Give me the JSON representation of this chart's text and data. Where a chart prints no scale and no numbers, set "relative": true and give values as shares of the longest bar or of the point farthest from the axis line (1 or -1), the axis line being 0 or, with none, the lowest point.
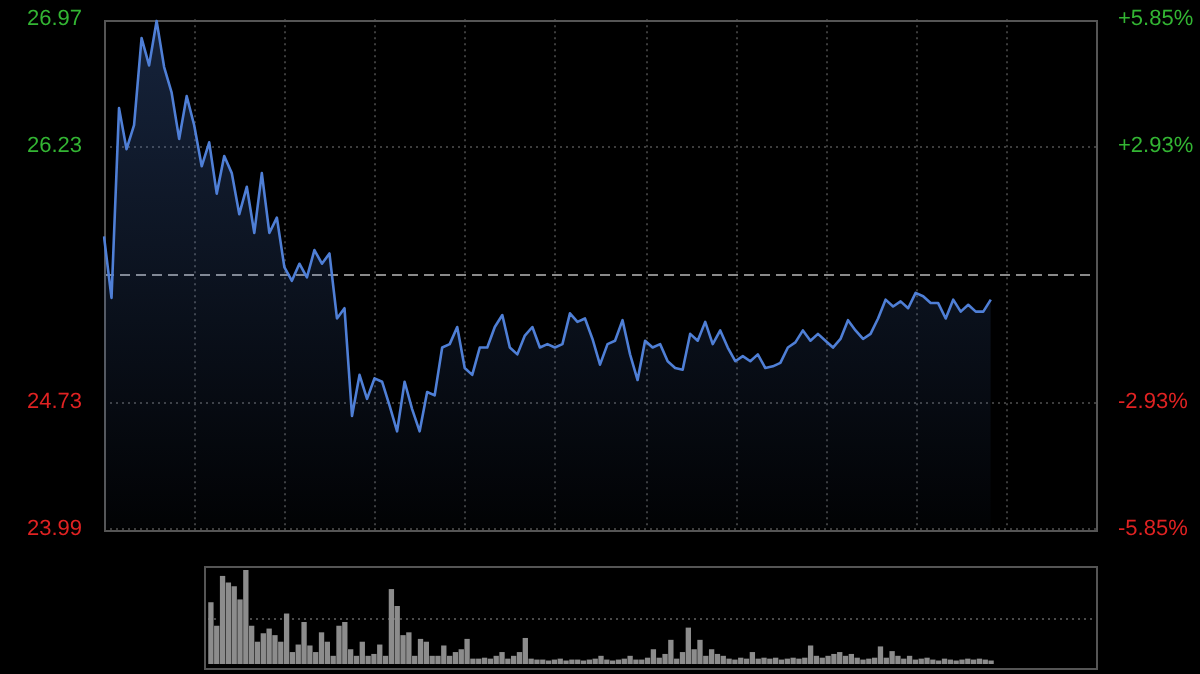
{
  "chart_data": [
    {
      "type": "area",
      "categories": [
        null,
        null,
        null,
        null,
        null,
        null,
        null,
        null,
        null,
        null,
        null,
        null,
        null,
        null,
        null,
        null,
        null,
        null,
        null,
        null,
        null,
        null,
        null,
        null,
        null,
        null,
        null,
        null,
        null,
        null,
        null,
        null,
        null,
        null,
        null,
        null,
        null,
        null,
        null,
        null,
        null,
        null,
        null,
        null,
        null,
        null,
        null,
        null,
        null,
        null,
        null,
        null,
        null,
        null,
        null,
        null,
        null,
        null,
        null,
        null,
        null,
        null,
        null,
        null,
        null,
        null,
        null,
        null,
        null,
        null,
        null,
        null,
        null,
        null,
        null,
        null,
        null,
        null,
        null,
        null,
        null,
        null,
        null,
        null,
        null,
        null,
        null,
        null,
        null,
        null,
        null,
        null,
        null,
        null,
        null,
        null,
        null,
        null,
        null,
        null,
        null,
        null,
        null,
        null,
        null,
        null,
        null,
        null,
        null,
        null,
        null,
        null,
        null,
        null,
        null,
        null,
        null,
        null,
        null,
        null,
        null,
        null,
        null,
        null,
        null,
        null,
        null,
        null,
        null,
        null,
        null,
        null,
        null
      ],
      "ylim": [
        23.99,
        26.97
      ],
      "yticks": [
        23.99,
        24.73,
        26.23,
        26.97
      ],
      "y2lim": [
        -5.85,
        5.85
      ],
      "y2ticks": [
        {
          "value": -5.85,
          "label": "-5.85%"
        },
        {
          "value": -2.93,
          "label": "-2.93%"
        },
        {
          "value": 2.93,
          "label": "+2.93%"
        },
        {
          "value": 5.85,
          "label": "+5.85%"
        }
      ],
      "ref_lines": [
        {
          "axis": "y",
          "value": 25.48,
          "color": "#8a8a8a",
          "line_style": "dashed"
        }
      ],
      "grid": true,
      "tick_labels": "y",
      "marker": "none",
      "series": [
        {
          "color": "#4f7fd6",
          "values": [
            25.7,
            25.34,
            26.45,
            26.21,
            26.35,
            26.86,
            26.7,
            26.96,
            26.69,
            26.54,
            26.27,
            26.52,
            26.35,
            26.11,
            26.25,
            25.95,
            26.17,
            26.07,
            25.83,
            25.99,
            25.72,
            26.07,
            25.72,
            25.81,
            25.52,
            25.44,
            25.54,
            25.46,
            25.62,
            25.54,
            25.6,
            25.22,
            25.28,
            24.65,
            24.89,
            24.75,
            24.87,
            24.85,
            24.71,
            24.56,
            24.85,
            24.69,
            24.56,
            24.79,
            24.77,
            25.05,
            25.07,
            25.17,
            24.93,
            24.89,
            25.05,
            25.05,
            25.17,
            25.24,
            25.05,
            25.01,
            25.12,
            25.17,
            25.05,
            25.07,
            25.05,
            25.07,
            25.25,
            25.2,
            25.22,
            25.1,
            24.95,
            25.07,
            25.09,
            25.21,
            25.01,
            24.86,
            25.09,
            25.05,
            25.07,
            24.97,
            24.93,
            24.92,
            25.13,
            25.09,
            25.2,
            25.07,
            25.15,
            25.05,
            24.97,
            25.0,
            24.97,
            25.01,
            24.93,
            24.94,
            24.96,
            25.05,
            25.08,
            25.15,
            25.09,
            25.13,
            25.09,
            25.05,
            25.1,
            25.21,
            25.15,
            25.1,
            25.13,
            25.22,
            25.33,
            25.29,
            25.32,
            25.28,
            25.37,
            25.35,
            25.31,
            25.31,
            25.22,
            25.33,
            25.26,
            25.3,
            25.26,
            25.26,
            25.33,
            null,
            null,
            null,
            null,
            null,
            null,
            null,
            null,
            null,
            null,
            null,
            null,
            null,
            null
          ]
        }
      ]
    },
    {
      "type": "bar",
      "relative": true,
      "tick_labels": false,
      "color": "#8c8c8c",
      "ref_lines": [
        {
          "axis": "y",
          "value": 0.5,
          "color": "#4a4a4a",
          "line_style": "dotted"
        }
      ],
      "categories": [
        null,
        null,
        null,
        null,
        null,
        null,
        null,
        null,
        null,
        null,
        null,
        null,
        null,
        null,
        null,
        null,
        null,
        null,
        null,
        null,
        null,
        null,
        null,
        null,
        null,
        null,
        null,
        null,
        null,
        null,
        null,
        null,
        null,
        null,
        null,
        null,
        null,
        null,
        null,
        null,
        null,
        null,
        null,
        null,
        null,
        null,
        null,
        null,
        null,
        null,
        null,
        null,
        null,
        null,
        null,
        null,
        null,
        null,
        null,
        null,
        null,
        null,
        null,
        null,
        null,
        null,
        null,
        null,
        null,
        null,
        null,
        null,
        null,
        null,
        null,
        null,
        null,
        null,
        null,
        null,
        null,
        null,
        null,
        null,
        null,
        null,
        null,
        null,
        null,
        null,
        null,
        null,
        null,
        null,
        null,
        null,
        null,
        null,
        null,
        null,
        null,
        null,
        null,
        null,
        null,
        null,
        null,
        null,
        null,
        null,
        null,
        null,
        null,
        null,
        null,
        null,
        null,
        null,
        null,
        null,
        null,
        null,
        null,
        null,
        null,
        null,
        null,
        null,
        null,
        null,
        null,
        null,
        null,
        null,
        null
      ],
      "values": [
        0.65,
        0.4,
        0.93,
        0.86,
        0.82,
        0.68,
        1.0,
        0.4,
        0.23,
        0.32,
        0.37,
        0.3,
        0.23,
        0.53,
        0.12,
        0.2,
        0.44,
        0.19,
        0.12,
        0.33,
        0.23,
        0.08,
        0.4,
        0.44,
        0.15,
        0.08,
        0.23,
        0.08,
        0.1,
        0.2,
        0.08,
        0.79,
        0.61,
        0.3,
        0.33,
        0.08,
        0.26,
        0.23,
        0.08,
        0.08,
        0.19,
        0.08,
        0.12,
        0.15,
        0.26,
        0.05,
        0.05,
        0.06,
        0.05,
        0.08,
        0.12,
        0.05,
        0.08,
        0.12,
        0.27,
        0.05,
        0.04,
        0.04,
        0.03,
        0.04,
        0.05,
        0.03,
        0.04,
        0.04,
        0.03,
        0.04,
        0.05,
        0.08,
        0.04,
        0.03,
        0.04,
        0.05,
        0.08,
        0.04,
        0.04,
        0.06,
        0.15,
        0.06,
        0.1,
        0.25,
        0.05,
        0.12,
        0.38,
        0.15,
        0.25,
        0.08,
        0.15,
        0.1,
        0.08,
        0.05,
        0.04,
        0.06,
        0.05,
        0.12,
        0.05,
        0.06,
        0.05,
        0.06,
        0.04,
        0.05,
        0.06,
        0.05,
        0.06,
        0.19,
        0.08,
        0.06,
        0.08,
        0.1,
        0.12,
        0.08,
        0.1,
        0.06,
        0.04,
        0.05,
        0.06,
        0.18,
        0.06,
        0.13,
        0.08,
        0.05,
        0.08,
        0.04,
        0.05,
        0.06,
        0.04,
        0.03,
        0.05,
        0.04,
        0.03,
        0.04,
        0.05,
        0.04,
        0.05,
        0.04,
        0.03
      ]
    }
  ]
}
